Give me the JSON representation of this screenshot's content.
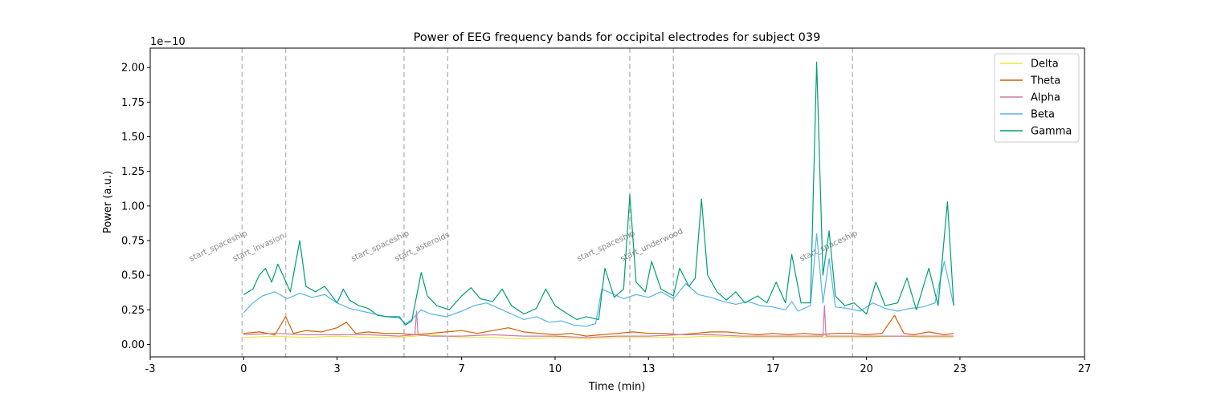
{
  "chart_data": {
    "type": "line",
    "title": "Power of EEG frequency bands for occipital electrodes for subject 039",
    "xlabel": "Time (min)",
    "ylabel": "Power (a.u.)",
    "y_offset_label": "1e−10",
    "xlim": [
      -3,
      27
    ],
    "ylim": [
      -0.09,
      2.14
    ],
    "x_ticks": [
      -3,
      0,
      3,
      7,
      10,
      13,
      17,
      20,
      23,
      27
    ],
    "x_tick_labels": [
      "-3",
      "0",
      "3",
      "7",
      "10",
      "13",
      "17",
      "20",
      "23",
      "27"
    ],
    "y_ticks": [
      0.0,
      0.25,
      0.5,
      0.75,
      1.0,
      1.25,
      1.5,
      1.75,
      2.0
    ],
    "y_tick_labels": [
      "0.00",
      "0.25",
      "0.50",
      "0.75",
      "1.00",
      "1.25",
      "1.50",
      "1.75",
      "2.00"
    ],
    "grid": false,
    "legend_position": "top-right",
    "events": [
      {
        "x": -0.05,
        "label": "start_spaceship"
      },
      {
        "x": 1.35,
        "label": "start_invasion"
      },
      {
        "x": 5.15,
        "label": "start_spaceship"
      },
      {
        "x": 6.55,
        "label": "start_asteroids"
      },
      {
        "x": 12.4,
        "label": "start_spaceship"
      },
      {
        "x": 13.8,
        "label": "start_underwood"
      },
      {
        "x": 19.55,
        "label": "start_spaceship"
      }
    ],
    "series": [
      {
        "name": "Delta",
        "color": "#F0E442",
        "points": [
          [
            0,
            0.05
          ],
          [
            1,
            0.06
          ],
          [
            2,
            0.05
          ],
          [
            3,
            0.06
          ],
          [
            4,
            0.05
          ],
          [
            5,
            0.05
          ],
          [
            6,
            0.07
          ],
          [
            7,
            0.05
          ],
          [
            8,
            0.05
          ],
          [
            9,
            0.04
          ],
          [
            10,
            0.05
          ],
          [
            11,
            0.04
          ],
          [
            12,
            0.05
          ],
          [
            13,
            0.05
          ],
          [
            14,
            0.05
          ],
          [
            15,
            0.06
          ],
          [
            16,
            0.05
          ],
          [
            17,
            0.05
          ],
          [
            18,
            0.05
          ],
          [
            19,
            0.05
          ],
          [
            20,
            0.05
          ],
          [
            21,
            0.06
          ],
          [
            22,
            0.05
          ],
          [
            22.8,
            0.05
          ]
        ]
      },
      {
        "name": "Theta",
        "color": "#D55E00",
        "points": [
          [
            0,
            0.08
          ],
          [
            0.5,
            0.09
          ],
          [
            1,
            0.07
          ],
          [
            1.35,
            0.2
          ],
          [
            1.6,
            0.08
          ],
          [
            2,
            0.1
          ],
          [
            2.5,
            0.09
          ],
          [
            3,
            0.12
          ],
          [
            3.3,
            0.16
          ],
          [
            3.6,
            0.08
          ],
          [
            4,
            0.09
          ],
          [
            4.5,
            0.08
          ],
          [
            5,
            0.08
          ],
          [
            5.5,
            0.07
          ],
          [
            6,
            0.08
          ],
          [
            6.5,
            0.09
          ],
          [
            7,
            0.1
          ],
          [
            7.5,
            0.08
          ],
          [
            8,
            0.1
          ],
          [
            8.5,
            0.12
          ],
          [
            9,
            0.09
          ],
          [
            9.5,
            0.08
          ],
          [
            10,
            0.07
          ],
          [
            10.5,
            0.08
          ],
          [
            11,
            0.06
          ],
          [
            11.5,
            0.07
          ],
          [
            12,
            0.08
          ],
          [
            12.5,
            0.09
          ],
          [
            13,
            0.08
          ],
          [
            13.5,
            0.08
          ],
          [
            14,
            0.07
          ],
          [
            14.5,
            0.08
          ],
          [
            15,
            0.09
          ],
          [
            15.5,
            0.09
          ],
          [
            16,
            0.08
          ],
          [
            16.5,
            0.07
          ],
          [
            17,
            0.08
          ],
          [
            17.5,
            0.07
          ],
          [
            18,
            0.08
          ],
          [
            18.5,
            0.07
          ],
          [
            19,
            0.08
          ],
          [
            19.5,
            0.08
          ],
          [
            20,
            0.07
          ],
          [
            20.5,
            0.08
          ],
          [
            20.9,
            0.21
          ],
          [
            21.2,
            0.08
          ],
          [
            21.5,
            0.07
          ],
          [
            22,
            0.09
          ],
          [
            22.5,
            0.07
          ],
          [
            22.8,
            0.08
          ]
        ]
      },
      {
        "name": "Alpha",
        "color": "#CC79A7",
        "points": [
          [
            0,
            0.07
          ],
          [
            1,
            0.08
          ],
          [
            2,
            0.07
          ],
          [
            3,
            0.07
          ],
          [
            4,
            0.07
          ],
          [
            5,
            0.06
          ],
          [
            5.5,
            0.07
          ],
          [
            5.55,
            0.24
          ],
          [
            5.6,
            0.07
          ],
          [
            6,
            0.06
          ],
          [
            7,
            0.06
          ],
          [
            8,
            0.07
          ],
          [
            9,
            0.06
          ],
          [
            10,
            0.06
          ],
          [
            11,
            0.05
          ],
          [
            12,
            0.06
          ],
          [
            13,
            0.06
          ],
          [
            14,
            0.07
          ],
          [
            15,
            0.07
          ],
          [
            16,
            0.06
          ],
          [
            17,
            0.06
          ],
          [
            18,
            0.06
          ],
          [
            18.6,
            0.06
          ],
          [
            18.65,
            0.28
          ],
          [
            18.7,
            0.06
          ],
          [
            19,
            0.06
          ],
          [
            20,
            0.06
          ],
          [
            21,
            0.06
          ],
          [
            22,
            0.06
          ],
          [
            22.8,
            0.06
          ]
        ]
      },
      {
        "name": "Beta",
        "color": "#56B4E9",
        "points": [
          [
            0,
            0.23
          ],
          [
            0.3,
            0.3
          ],
          [
            0.6,
            0.35
          ],
          [
            1,
            0.38
          ],
          [
            1.4,
            0.33
          ],
          [
            1.8,
            0.37
          ],
          [
            2.2,
            0.34
          ],
          [
            2.6,
            0.36
          ],
          [
            3,
            0.3
          ],
          [
            3.4,
            0.26
          ],
          [
            3.8,
            0.24
          ],
          [
            4.2,
            0.22
          ],
          [
            4.6,
            0.2
          ],
          [
            5,
            0.19
          ],
          [
            5.2,
            0.15
          ],
          [
            5.4,
            0.18
          ],
          [
            5.7,
            0.25
          ],
          [
            6,
            0.22
          ],
          [
            6.5,
            0.2
          ],
          [
            7,
            0.24
          ],
          [
            7.4,
            0.28
          ],
          [
            7.8,
            0.3
          ],
          [
            8.2,
            0.26
          ],
          [
            8.6,
            0.22
          ],
          [
            9,
            0.18
          ],
          [
            9.4,
            0.2
          ],
          [
            9.8,
            0.16
          ],
          [
            10.2,
            0.17
          ],
          [
            10.6,
            0.14
          ],
          [
            11,
            0.13
          ],
          [
            11.3,
            0.15
          ],
          [
            11.5,
            0.4
          ],
          [
            11.8,
            0.37
          ],
          [
            12.2,
            0.33
          ],
          [
            12.6,
            0.36
          ],
          [
            13,
            0.34
          ],
          [
            13.4,
            0.38
          ],
          [
            13.8,
            0.33
          ],
          [
            14.2,
            0.44
          ],
          [
            14.6,
            0.36
          ],
          [
            15,
            0.34
          ],
          [
            15.4,
            0.31
          ],
          [
            15.8,
            0.29
          ],
          [
            16.2,
            0.31
          ],
          [
            16.6,
            0.28
          ],
          [
            17,
            0.27
          ],
          [
            17.4,
            0.25
          ],
          [
            17.6,
            0.31
          ],
          [
            17.8,
            0.24
          ],
          [
            18.2,
            0.28
          ],
          [
            18.4,
            0.8
          ],
          [
            18.6,
            0.3
          ],
          [
            18.8,
            0.62
          ],
          [
            19,
            0.27
          ],
          [
            19.4,
            0.26
          ],
          [
            19.8,
            0.24
          ],
          [
            20.2,
            0.3
          ],
          [
            20.6,
            0.26
          ],
          [
            21,
            0.24
          ],
          [
            21.4,
            0.26
          ],
          [
            21.8,
            0.27
          ],
          [
            22.2,
            0.3
          ],
          [
            22.5,
            0.6
          ],
          [
            22.8,
            0.28
          ]
        ]
      },
      {
        "name": "Gamma",
        "color": "#009E73",
        "points": [
          [
            0,
            0.36
          ],
          [
            0.3,
            0.4
          ],
          [
            0.5,
            0.5
          ],
          [
            0.7,
            0.55
          ],
          [
            0.9,
            0.45
          ],
          [
            1.1,
            0.58
          ],
          [
            1.3,
            0.48
          ],
          [
            1.5,
            0.38
          ],
          [
            1.8,
            0.75
          ],
          [
            2,
            0.42
          ],
          [
            2.3,
            0.38
          ],
          [
            2.6,
            0.42
          ],
          [
            2.8,
            0.36
          ],
          [
            3,
            0.3
          ],
          [
            3.2,
            0.4
          ],
          [
            3.4,
            0.32
          ],
          [
            3.7,
            0.28
          ],
          [
            4,
            0.26
          ],
          [
            4.3,
            0.21
          ],
          [
            4.6,
            0.2
          ],
          [
            5,
            0.2
          ],
          [
            5.2,
            0.14
          ],
          [
            5.4,
            0.17
          ],
          [
            5.7,
            0.52
          ],
          [
            5.9,
            0.35
          ],
          [
            6.2,
            0.28
          ],
          [
            6.6,
            0.25
          ],
          [
            7,
            0.35
          ],
          [
            7.3,
            0.41
          ],
          [
            7.6,
            0.33
          ],
          [
            8,
            0.31
          ],
          [
            8.3,
            0.4
          ],
          [
            8.6,
            0.28
          ],
          [
            9,
            0.22
          ],
          [
            9.4,
            0.26
          ],
          [
            9.7,
            0.4
          ],
          [
            10,
            0.28
          ],
          [
            10.4,
            0.22
          ],
          [
            10.7,
            0.18
          ],
          [
            11,
            0.2
          ],
          [
            11.4,
            0.18
          ],
          [
            11.6,
            0.55
          ],
          [
            11.9,
            0.34
          ],
          [
            12.2,
            0.4
          ],
          [
            12.4,
            1.08
          ],
          [
            12.6,
            0.45
          ],
          [
            12.9,
            0.38
          ],
          [
            13.1,
            0.6
          ],
          [
            13.4,
            0.4
          ],
          [
            13.8,
            0.35
          ],
          [
            14,
            0.55
          ],
          [
            14.3,
            0.42
          ],
          [
            14.5,
            0.48
          ],
          [
            14.7,
            1.05
          ],
          [
            14.9,
            0.5
          ],
          [
            15.2,
            0.38
          ],
          [
            15.5,
            0.32
          ],
          [
            15.8,
            0.38
          ],
          [
            16.1,
            0.3
          ],
          [
            16.5,
            0.35
          ],
          [
            16.8,
            0.3
          ],
          [
            17.1,
            0.45
          ],
          [
            17.4,
            0.3
          ],
          [
            17.6,
            0.65
          ],
          [
            17.9,
            0.3
          ],
          [
            18.2,
            0.3
          ],
          [
            18.4,
            2.04
          ],
          [
            18.6,
            0.5
          ],
          [
            18.8,
            0.82
          ],
          [
            19,
            0.35
          ],
          [
            19.3,
            0.28
          ],
          [
            19.6,
            0.3
          ],
          [
            20,
            0.22
          ],
          [
            20.3,
            0.45
          ],
          [
            20.6,
            0.28
          ],
          [
            21,
            0.3
          ],
          [
            21.3,
            0.48
          ],
          [
            21.6,
            0.25
          ],
          [
            22,
            0.55
          ],
          [
            22.3,
            0.28
          ],
          [
            22.6,
            1.03
          ],
          [
            22.8,
            0.28
          ]
        ]
      }
    ]
  }
}
